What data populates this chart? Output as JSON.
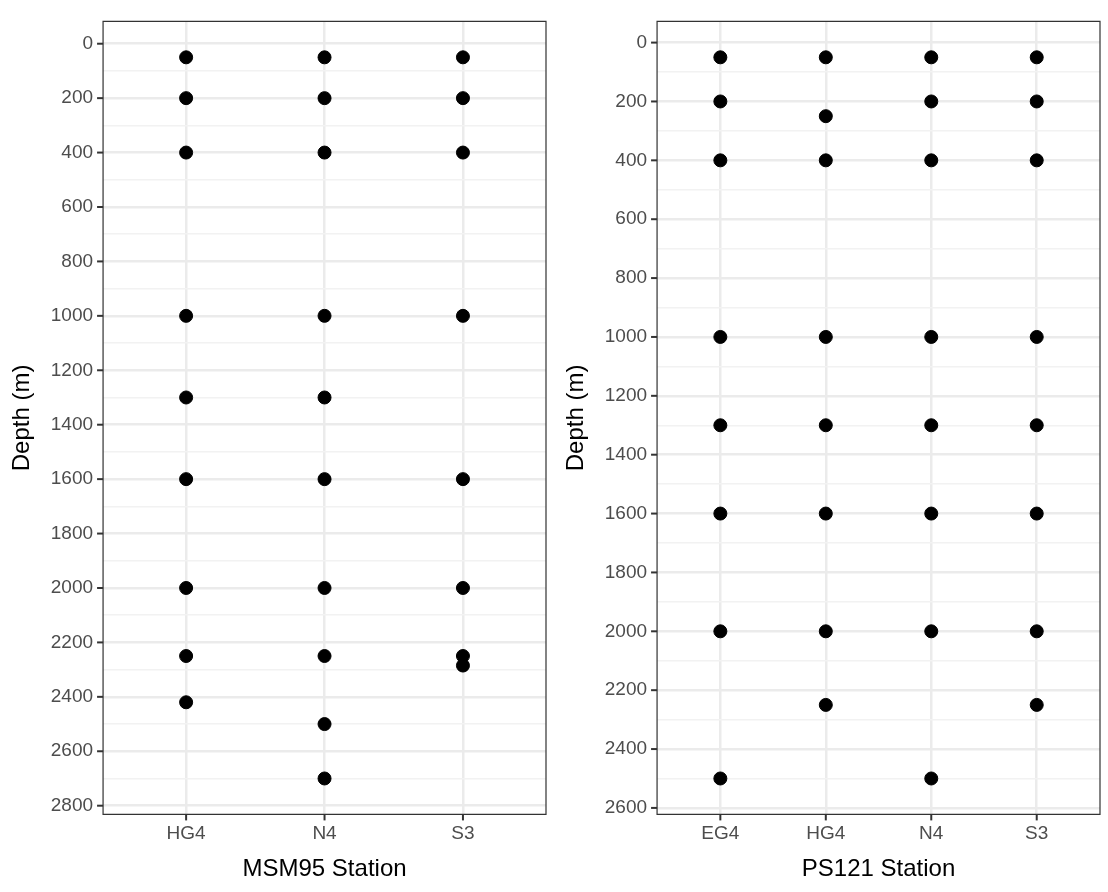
{
  "chart_data": [
    {
      "type": "scatter",
      "xlabel": "MSM95 Station",
      "ylabel": "Depth (m)",
      "categories": [
        "HG4",
        "N4",
        "S3"
      ],
      "series": [
        {
          "color": "#000000",
          "x": [
            "HG4",
            "HG4",
            "HG4",
            "HG4",
            "HG4",
            "HG4",
            "HG4",
            "HG4",
            "HG4",
            "N4",
            "N4",
            "N4",
            "N4",
            "N4",
            "N4",
            "N4",
            "N4",
            "N4",
            "N4",
            "S3",
            "S3",
            "S3",
            "S3",
            "S3",
            "S3",
            "S3",
            "S3"
          ],
          "values": [
            50,
            200,
            400,
            1000,
            1300,
            1600,
            2000,
            2250,
            2420,
            50,
            200,
            400,
            1000,
            1300,
            1600,
            2000,
            2250,
            2500,
            2700,
            50,
            200,
            400,
            1000,
            1600,
            2000,
            2250,
            2285
          ]
        }
      ],
      "ylim": [
        2832,
        -82
      ],
      "yticks": [
        0,
        {
          "value": 100,
          "label": null
        },
        200,
        {
          "value": 300,
          "label": null
        },
        400,
        {
          "value": 500,
          "label": null
        },
        600,
        {
          "value": 700,
          "label": null
        },
        800,
        {
          "value": 900,
          "label": null
        },
        1000,
        {
          "value": 1100,
          "label": null
        },
        1200,
        {
          "value": 1300,
          "label": null
        },
        1400,
        {
          "value": 1500,
          "label": null
        },
        1600,
        {
          "value": 1700,
          "label": null
        },
        1800,
        {
          "value": 1900,
          "label": null
        },
        2000,
        {
          "value": 2100,
          "label": null
        },
        2200,
        {
          "value": 2300,
          "label": null
        },
        2400,
        {
          "value": 2500,
          "label": null
        },
        2600,
        {
          "value": 2700,
          "label": null
        },
        2800
      ],
      "grid": true,
      "marker": "circle",
      "legend": false
    },
    {
      "type": "scatter",
      "xlabel": "PS121 Station",
      "ylabel": "Depth (m)",
      "categories": [
        "EG4",
        "HG4",
        "N4",
        "S3"
      ],
      "series": [
        {
          "color": "#000000",
          "x": [
            "EG4",
            "EG4",
            "EG4",
            "EG4",
            "EG4",
            "EG4",
            "EG4",
            "EG4",
            "HG4",
            "HG4",
            "HG4",
            "HG4",
            "HG4",
            "HG4",
            "HG4",
            "HG4",
            "N4",
            "N4",
            "N4",
            "N4",
            "N4",
            "N4",
            "N4",
            "N4",
            "S3",
            "S3",
            "S3",
            "S3",
            "S3",
            "S3",
            "S3",
            "S3"
          ],
          "values": [
            50,
            200,
            400,
            1000,
            1300,
            1600,
            2000,
            2500,
            50,
            250,
            400,
            1000,
            1300,
            1600,
            2000,
            2250,
            50,
            200,
            400,
            1000,
            1300,
            1600,
            2000,
            2500,
            50,
            200,
            400,
            1000,
            1300,
            1600,
            2000,
            2250
          ]
        }
      ],
      "ylim": [
        2622,
        -72
      ],
      "yticks": [
        0,
        {
          "value": 100,
          "label": null
        },
        200,
        {
          "value": 300,
          "label": null
        },
        400,
        {
          "value": 500,
          "label": null
        },
        600,
        {
          "value": 700,
          "label": null
        },
        800,
        {
          "value": 900,
          "label": null
        },
        1000,
        {
          "value": 1100,
          "label": null
        },
        1200,
        {
          "value": 1300,
          "label": null
        },
        1400,
        {
          "value": 1500,
          "label": null
        },
        1600,
        {
          "value": 1700,
          "label": null
        },
        1800,
        {
          "value": 1900,
          "label": null
        },
        2000,
        {
          "value": 2100,
          "label": null
        },
        2200,
        {
          "value": 2300,
          "label": null
        },
        2400,
        {
          "value": 2500,
          "label": null
        },
        2600
      ],
      "grid": true,
      "marker": "circle",
      "legend": false
    }
  ]
}
